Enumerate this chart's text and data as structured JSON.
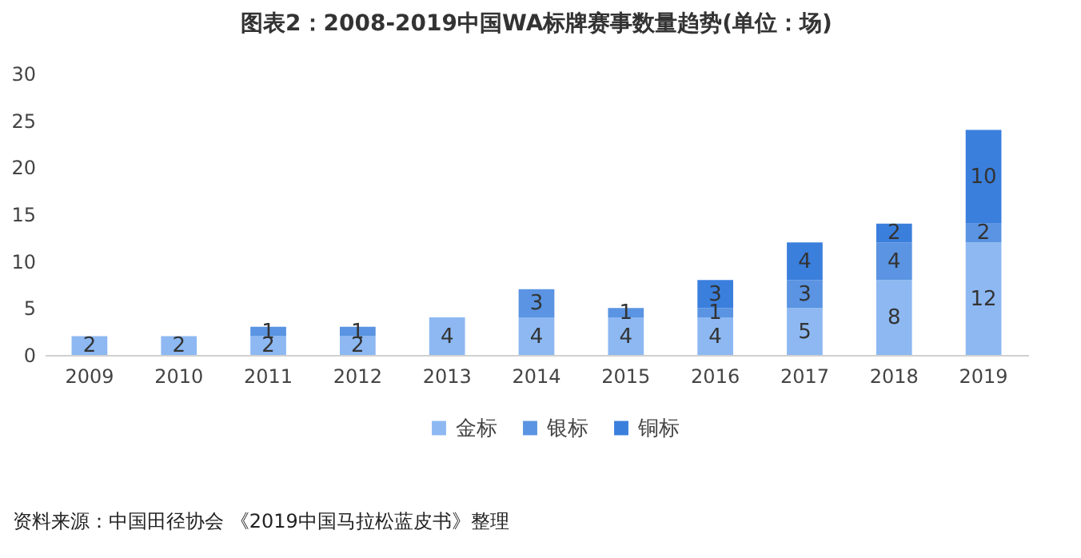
{
  "chart_data": {
    "type": "bar",
    "title": "图表2：2008-2019中国WA标牌赛事数量趋势(单位：场)",
    "categories": [
      "2009",
      "2010",
      "2011",
      "2012",
      "2013",
      "2014",
      "2015",
      "2016",
      "2017",
      "2018",
      "2019"
    ],
    "series": [
      {
        "name": "金标",
        "color": "#8db8f2",
        "values": [
          2,
          2,
          2,
          2,
          4,
          4,
          4,
          4,
          5,
          8,
          12
        ]
      },
      {
        "name": "银标",
        "color": "#5a94e2",
        "values": [
          null,
          null,
          1,
          1,
          null,
          3,
          1,
          1,
          3,
          4,
          2
        ]
      },
      {
        "name": "铜标",
        "color": "#3b7fdd",
        "values": [
          null,
          null,
          null,
          null,
          null,
          null,
          null,
          3,
          4,
          2,
          10
        ]
      }
    ],
    "stacked": true,
    "data_labels": true,
    "ylim": [
      0,
      30
    ],
    "yticks": [
      0,
      5,
      10,
      15,
      20,
      25,
      30
    ],
    "grid": false,
    "legend": "bottom",
    "annotations": [
      "资料来源：中国田径协会 《2019中国马拉松蓝皮书》整理"
    ]
  }
}
